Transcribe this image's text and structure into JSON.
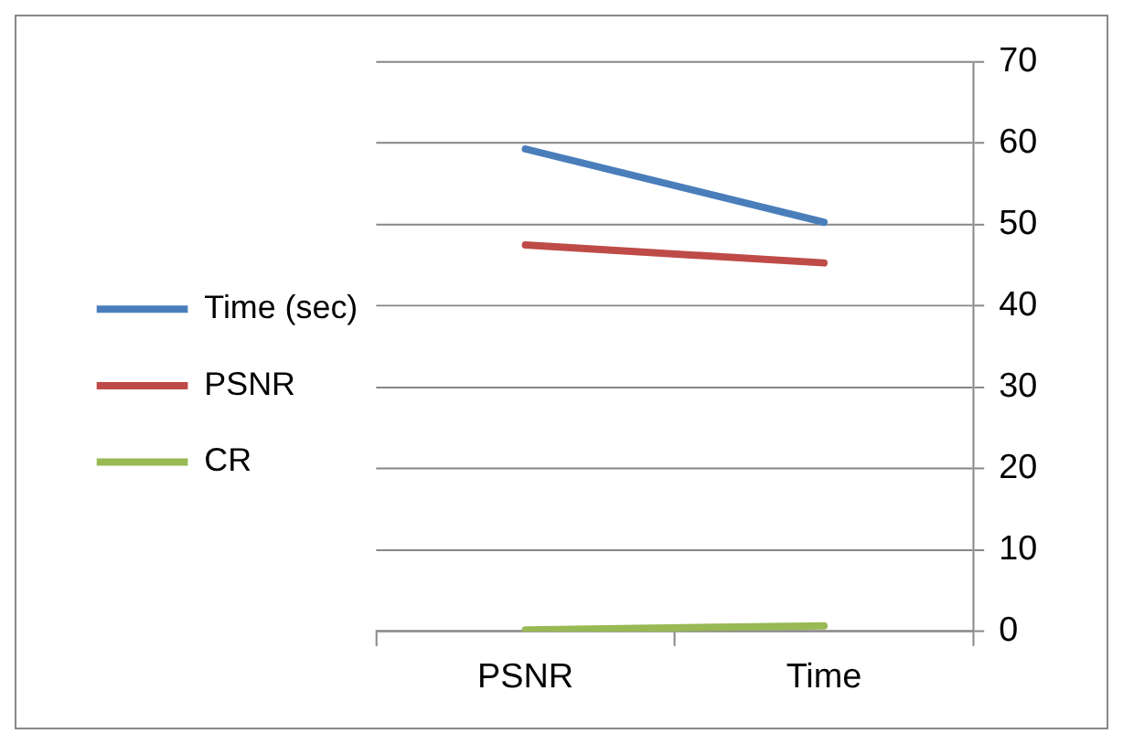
{
  "chart_data": {
    "type": "line",
    "categories": [
      "PSNR",
      "Time"
    ],
    "series": [
      {
        "name": "Time (sec)",
        "color": "#4a7ebb",
        "values": [
          59.3,
          50.3
        ]
      },
      {
        "name": "PSNR",
        "color": "#be4b48",
        "values": [
          47.5,
          45.3
        ]
      },
      {
        "name": "CR",
        "color": "#98b954",
        "values": [
          0.2,
          0.7
        ]
      }
    ],
    "ylim": [
      0,
      70
    ],
    "yticks": [
      0,
      10,
      20,
      30,
      40,
      50,
      60,
      70
    ],
    "grid": "y",
    "legend": "left",
    "marker": "none",
    "line_style": "solid"
  }
}
